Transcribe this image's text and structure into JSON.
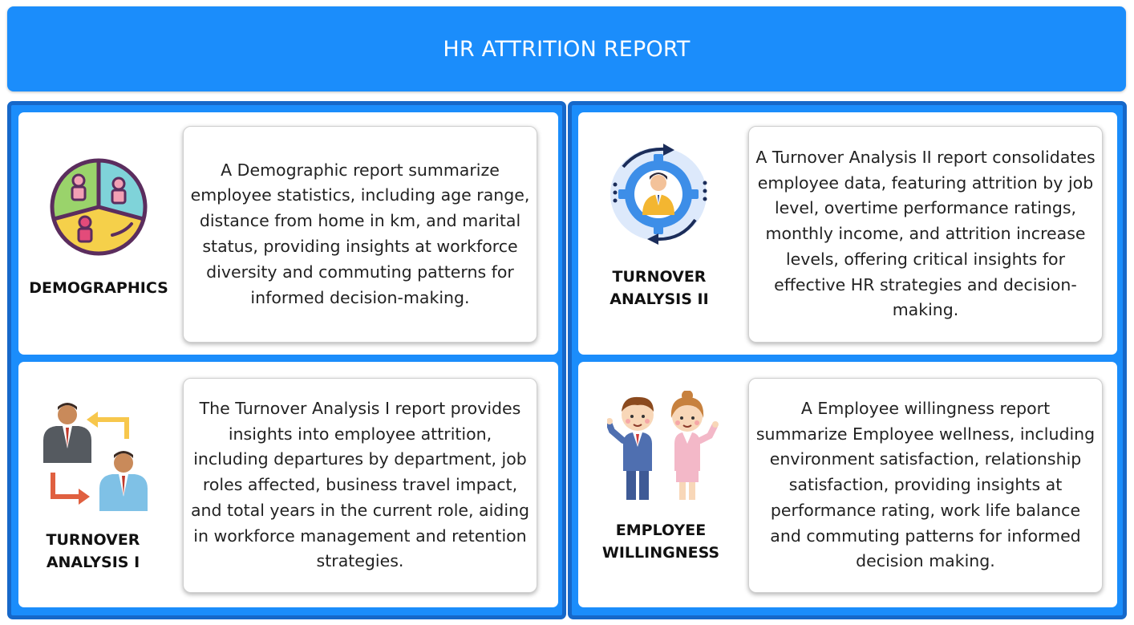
{
  "header": {
    "title": "HR ATTRITION REPORT"
  },
  "cards": {
    "demographics": {
      "title": "DEMOGRAPHICS",
      "icon": "demographics-pie-people-icon",
      "description": "A Demographic report summarize employee statistics, including age range, distance from home in km, and marital status, providing insights at workforce diversity and commuting patterns for informed decision-making."
    },
    "turnover_2": {
      "title": "TURNOVER ANALYSIS II",
      "icon": "employee-gear-cycle-icon",
      "description": "A Turnover Analysis II report consolidates employee data, featuring attrition by job level, overtime performance ratings, monthly income, and attrition increase levels, offering critical insights for effective HR strategies and decision-making."
    },
    "turnover_1": {
      "title": "TURNOVER ANALYSIS I",
      "icon": "employee-swap-arrows-icon",
      "description": "The Turnover Analysis I report provides insights into employee attrition, including departures by department, job roles affected, business travel impact, and total years in the current role, aiding in workforce management and retention strategies."
    },
    "willingness": {
      "title": "EMPLOYEE WILLINGNESS",
      "icon": "two-employees-icon",
      "description": "A Employee willingness report summarize Employee wellness, including environment satisfaction, relationship satisfaction, providing insights at performance rating, work life balance and commuting patterns for informed decision making."
    }
  },
  "colors": {
    "header_bg": "#1b8dfb",
    "panel_border": "#1668c9",
    "card_bg": "#ffffff"
  }
}
